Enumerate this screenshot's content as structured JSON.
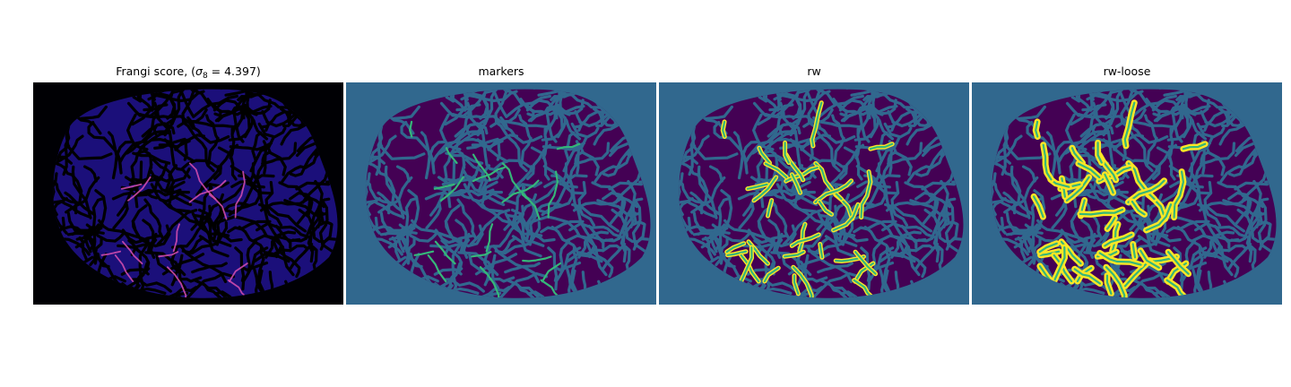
{
  "figure": {
    "panels": [
      {
        "title_prefix": "Frangi score, (",
        "title_sigma": "σ",
        "title_sub": "8",
        "title_suffix": " = 4.397)",
        "colormap": "magma",
        "colors": {
          "background": "#000004",
          "tissue": "#1b0f7a",
          "vessel": "#000000",
          "hot": "#d84fb0"
        }
      },
      {
        "title": "markers",
        "colormap": "viridis",
        "colors": {
          "background": "#31688e",
          "tissue": "#440154",
          "vessel": "#31688e",
          "marker": "#35b779"
        }
      },
      {
        "title": "rw",
        "colormap": "viridis",
        "colors": {
          "background": "#31688e",
          "tissue": "#440154",
          "vessel": "#31688e",
          "marker": "#35b779",
          "edge": "#fde725"
        }
      },
      {
        "title": "rw-loose",
        "colormap": "viridis",
        "colors": {
          "background": "#31688e",
          "tissue": "#440154",
          "vessel": "#31688e",
          "marker": "#35b779",
          "edge": "#fde725"
        }
      }
    ]
  }
}
